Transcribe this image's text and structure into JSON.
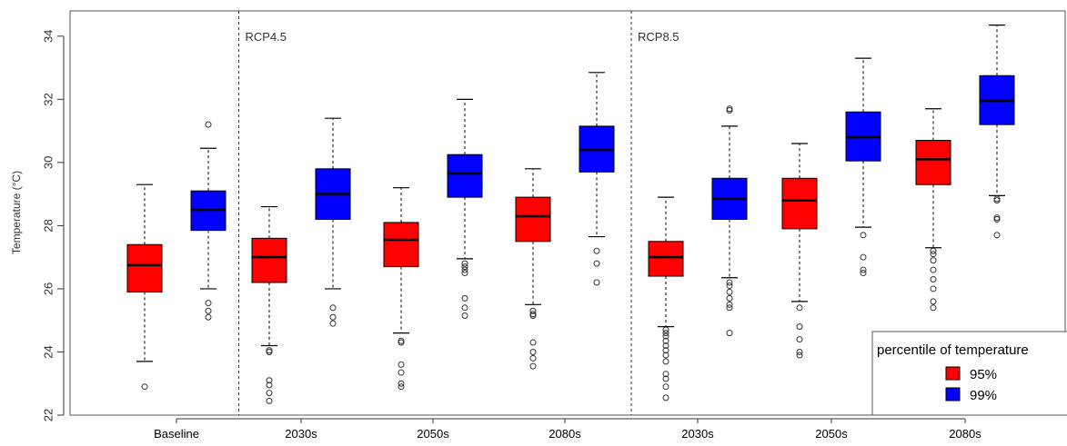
{
  "chart_data": {
    "type": "boxplot",
    "ylabel": "Temperature (°C)",
    "ylim": [
      22,
      34.8
    ],
    "yticks": [
      22,
      24,
      26,
      28,
      30,
      32,
      34
    ],
    "categories": [
      "Baseline",
      "2030s",
      "2050s",
      "2080s",
      "2030s",
      "2050s",
      "2080s"
    ],
    "section_labels": [
      {
        "text": "RCP4.5",
        "after_category_index": 0
      },
      {
        "text": "RCP8.5",
        "after_category_index": 3
      }
    ],
    "legend": {
      "title": "percentile of temperature",
      "position": "bottom-right",
      "entries": [
        {
          "label": "95%",
          "color": "#ff0000"
        },
        {
          "label": "99%",
          "color": "#0000ff"
        }
      ]
    },
    "series": [
      {
        "color": "#ff0000",
        "boxes": [
          {
            "whisker_low": 23.7,
            "q1": 25.9,
            "median": 26.75,
            "q3": 27.4,
            "whisker_high": 29.3,
            "outliers": [
              22.9
            ]
          },
          {
            "whisker_low": 24.2,
            "q1": 26.2,
            "median": 27.0,
            "q3": 27.6,
            "whisker_high": 28.6,
            "outliers": [
              24.05,
              24.0,
              23.1,
              22.95,
              22.7,
              22.45
            ]
          },
          {
            "whisker_low": 24.6,
            "q1": 26.7,
            "median": 27.55,
            "q3": 28.1,
            "whisker_high": 29.2,
            "outliers": [
              24.35,
              24.3,
              23.6,
              23.35,
              23.0,
              22.9
            ]
          },
          {
            "whisker_low": 25.5,
            "q1": 27.5,
            "median": 28.3,
            "q3": 28.9,
            "whisker_high": 29.8,
            "outliers": [
              25.3,
              25.2,
              25.15,
              24.3,
              24.0,
              23.8,
              23.55
            ]
          },
          {
            "whisker_low": 24.8,
            "q1": 26.4,
            "median": 27.0,
            "q3": 27.5,
            "whisker_high": 28.9,
            "outliers": [
              24.7,
              24.6,
              24.5,
              24.35,
              24.2,
              24.05,
              23.9,
              23.7,
              23.3,
              23.15,
              22.9,
              22.55
            ]
          },
          {
            "whisker_low": 25.6,
            "q1": 27.9,
            "median": 28.8,
            "q3": 29.5,
            "whisker_high": 30.6,
            "outliers": [
              25.4,
              24.8,
              24.4,
              24.0,
              23.9
            ]
          },
          {
            "whisker_low": 27.3,
            "q1": 29.3,
            "median": 30.1,
            "q3": 30.7,
            "whisker_high": 31.7,
            "outliers": [
              27.2,
              27.1,
              26.9,
              26.6,
              26.3,
              26.0,
              25.6,
              25.4
            ]
          }
        ]
      },
      {
        "color": "#0000ff",
        "boxes": [
          {
            "whisker_low": 26.0,
            "q1": 27.85,
            "median": 28.5,
            "q3": 29.1,
            "whisker_high": 30.45,
            "outliers": [
              31.2,
              25.55,
              25.3,
              25.1
            ]
          },
          {
            "whisker_low": 26.0,
            "q1": 28.2,
            "median": 29.0,
            "q3": 29.8,
            "whisker_high": 31.4,
            "outliers": [
              25.4,
              25.1,
              24.9
            ]
          },
          {
            "whisker_low": 26.95,
            "q1": 28.9,
            "median": 29.65,
            "q3": 30.25,
            "whisker_high": 32.0,
            "outliers": [
              26.8,
              26.7,
              26.6,
              26.5,
              25.7,
              25.4,
              25.15
            ]
          },
          {
            "whisker_low": 27.65,
            "q1": 29.7,
            "median": 30.4,
            "q3": 31.15,
            "whisker_high": 32.85,
            "outliers": [
              27.2,
              26.8,
              26.2
            ]
          },
          {
            "whisker_low": 26.35,
            "q1": 28.2,
            "median": 28.85,
            "q3": 29.5,
            "whisker_high": 31.15,
            "outliers": [
              31.7,
              31.65,
              26.2,
              26.1,
              25.9,
              25.7,
              25.5,
              25.4,
              24.6
            ]
          },
          {
            "whisker_low": 27.95,
            "q1": 30.05,
            "median": 30.8,
            "q3": 31.6,
            "whisker_high": 33.3,
            "outliers": [
              27.7,
              27.0,
              26.6,
              26.5
            ]
          },
          {
            "whisker_low": 28.95,
            "q1": 31.2,
            "median": 31.95,
            "q3": 32.75,
            "whisker_high": 34.35,
            "outliers": [
              28.85,
              28.8,
              28.25,
              28.2,
              27.7
            ]
          }
        ]
      }
    ]
  }
}
